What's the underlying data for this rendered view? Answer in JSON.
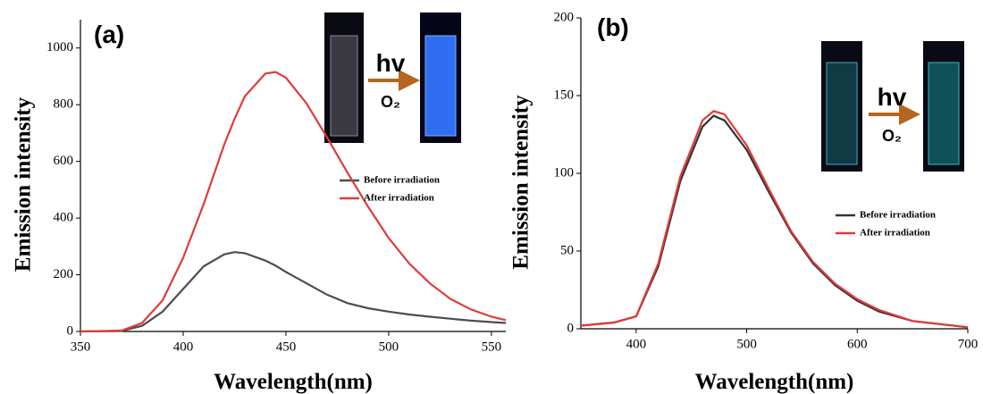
{
  "chart_data": [
    {
      "type": "line",
      "title": "(a)",
      "x_label": "Wavelength(nm)",
      "y_label": "Emission intensity",
      "x": [
        350,
        370,
        380,
        390,
        400,
        410,
        420,
        425,
        430,
        440,
        445,
        450,
        460,
        470,
        480,
        490,
        500,
        510,
        520,
        530,
        540,
        550,
        557
      ],
      "series": [
        {
          "name": "Before irradiation",
          "color": "#4d4d4d",
          "values": [
            0,
            2,
            20,
            70,
            150,
            230,
            272,
            280,
            276,
            250,
            232,
            210,
            170,
            130,
            100,
            82,
            70,
            60,
            52,
            45,
            38,
            33,
            30
          ]
        },
        {
          "name": "After irradiation",
          "color": "#e03a3a",
          "values": [
            0,
            3,
            30,
            110,
            260,
            450,
            660,
            750,
            830,
            910,
            915,
            895,
            805,
            685,
            560,
            440,
            330,
            240,
            170,
            115,
            78,
            52,
            40
          ]
        }
      ],
      "xlim": [
        350,
        557
      ],
      "ylim": [
        0,
        1100
      ],
      "xticks": [
        350,
        400,
        450,
        500,
        550
      ],
      "yticks": [
        0,
        200,
        400,
        600,
        800,
        1000
      ],
      "annotations": [
        "hv",
        "O₂"
      ]
    },
    {
      "type": "line",
      "title": "(b)",
      "x_label": "Wavelength(nm)",
      "y_label": "Emission intensity",
      "x": [
        350,
        380,
        400,
        420,
        440,
        460,
        470,
        480,
        500,
        520,
        540,
        560,
        580,
        600,
        620,
        650,
        700
      ],
      "series": [
        {
          "name": "Before irradiation",
          "color": "#333333",
          "values": [
            2,
            4,
            8,
            40,
            95,
            130,
            137,
            134,
            115,
            88,
            62,
            42,
            28,
            18,
            11,
            5,
            1
          ]
        },
        {
          "name": "After irradiation",
          "color": "#e03a3a",
          "values": [
            2,
            4,
            8,
            42,
            98,
            134,
            140,
            138,
            118,
            90,
            63,
            43,
            29,
            19,
            12,
            5,
            1
          ]
        }
      ],
      "xlim": [
        350,
        700
      ],
      "ylim": [
        0,
        200
      ],
      "xticks": [
        400,
        500,
        600,
        700
      ],
      "yticks": [
        0,
        50,
        100,
        150,
        200
      ],
      "annotations": [
        "hv",
        "O₂"
      ]
    }
  ]
}
